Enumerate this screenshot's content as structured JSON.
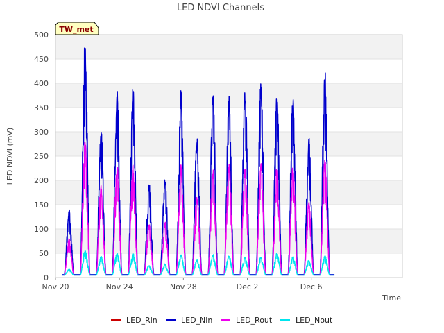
{
  "chart_data": {
    "type": "line",
    "title": "LED NDVI Channels",
    "xlabel": "Time",
    "ylabel": "LED NDVI (mV)",
    "site_label": "TW_met",
    "xlim": [
      0,
      21.7
    ],
    "ylim": [
      0,
      500
    ],
    "yticks": [
      0,
      50,
      100,
      150,
      200,
      250,
      300,
      350,
      400,
      450,
      500
    ],
    "xticks": [
      {
        "label": "Nov 20",
        "day": 0
      },
      {
        "label": "Nov 24",
        "day": 4
      },
      {
        "label": "Nov 28",
        "day": 8
      },
      {
        "label": "Dec 2",
        "day": 12
      },
      {
        "label": "Dec 6",
        "day": 16
      }
    ],
    "grid": "horizontal",
    "legend_position": "bottom",
    "series": [
      {
        "name": "LED_Rin",
        "color": "#cc0000",
        "baseline": 0,
        "peaks": []
      },
      {
        "name": "LED_Nin",
        "color": "#0000cc",
        "baseline": 6,
        "peaks": [
          {
            "day": 0.85,
            "value": 142
          },
          {
            "day": 1.85,
            "value": 490
          },
          {
            "day": 2.85,
            "value": 310
          },
          {
            "day": 3.85,
            "value": 388
          },
          {
            "day": 4.85,
            "value": 392
          },
          {
            "day": 5.85,
            "value": 197
          },
          {
            "day": 6.85,
            "value": 203
          },
          {
            "day": 7.85,
            "value": 388
          },
          {
            "day": 8.85,
            "value": 290
          },
          {
            "day": 9.85,
            "value": 388
          },
          {
            "day": 10.85,
            "value": 376
          },
          {
            "day": 11.85,
            "value": 398
          },
          {
            "day": 12.85,
            "value": 402
          },
          {
            "day": 13.85,
            "value": 384
          },
          {
            "day": 14.85,
            "value": 370
          },
          {
            "day": 15.85,
            "value": 290
          },
          {
            "day": 16.85,
            "value": 433
          }
        ]
      },
      {
        "name": "LED_Rout",
        "color": "#ee00ee",
        "baseline": 5,
        "peaks": [
          {
            "day": 0.85,
            "value": 80
          },
          {
            "day": 1.85,
            "value": 290
          },
          {
            "day": 2.85,
            "value": 190
          },
          {
            "day": 3.85,
            "value": 232
          },
          {
            "day": 4.85,
            "value": 232
          },
          {
            "day": 5.85,
            "value": 110
          },
          {
            "day": 6.85,
            "value": 115
          },
          {
            "day": 7.85,
            "value": 232
          },
          {
            "day": 8.85,
            "value": 168
          },
          {
            "day": 9.85,
            "value": 226
          },
          {
            "day": 10.85,
            "value": 238
          },
          {
            "day": 11.85,
            "value": 230
          },
          {
            "day": 12.85,
            "value": 237
          },
          {
            "day": 13.85,
            "value": 229
          },
          {
            "day": 14.85,
            "value": 230
          },
          {
            "day": 15.85,
            "value": 158
          },
          {
            "day": 16.85,
            "value": 245
          }
        ]
      },
      {
        "name": "LED_Nout",
        "color": "#00e5ee",
        "baseline": 5,
        "peaks": [
          {
            "day": 0.85,
            "value": 17
          },
          {
            "day": 1.85,
            "value": 56
          },
          {
            "day": 2.85,
            "value": 44
          },
          {
            "day": 3.85,
            "value": 50
          },
          {
            "day": 4.85,
            "value": 50
          },
          {
            "day": 5.85,
            "value": 25
          },
          {
            "day": 6.85,
            "value": 28
          },
          {
            "day": 7.85,
            "value": 47
          },
          {
            "day": 8.85,
            "value": 37
          },
          {
            "day": 9.85,
            "value": 48
          },
          {
            "day": 10.85,
            "value": 45
          },
          {
            "day": 11.85,
            "value": 42
          },
          {
            "day": 12.85,
            "value": 43
          },
          {
            "day": 13.85,
            "value": 50
          },
          {
            "day": 14.85,
            "value": 44
          },
          {
            "day": 15.85,
            "value": 36
          },
          {
            "day": 16.85,
            "value": 45
          }
        ]
      }
    ],
    "data_range_days": [
      0.4,
      17.45
    ]
  }
}
